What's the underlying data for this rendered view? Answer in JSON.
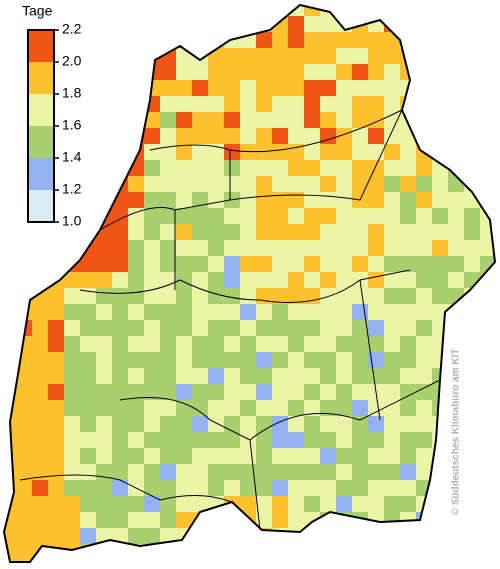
{
  "legend": {
    "title": "Tage",
    "labels": [
      "2.2",
      "2.0",
      "1.8",
      "1.6",
      "1.4",
      "1.2",
      "1.0"
    ],
    "colors": [
      "#f05518",
      "#fbc12f",
      "#ecf4a8",
      "#a9cf6e",
      "#94b1f0",
      "#d9ecf4"
    ]
  },
  "credit": "© Süddeutsches Klimabüro am KIT"
}
